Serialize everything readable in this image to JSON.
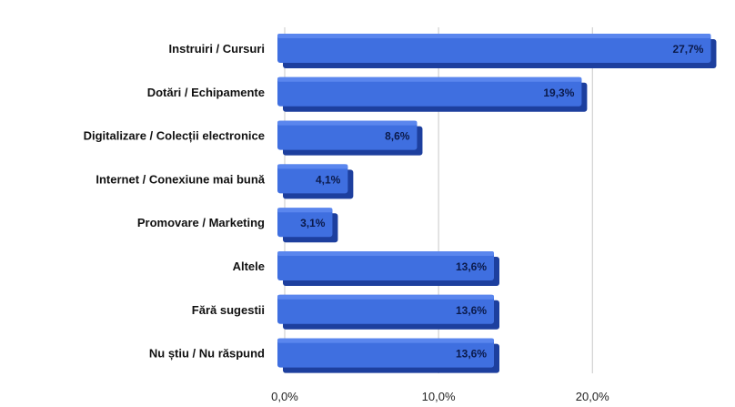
{
  "chart_data": {
    "type": "bar",
    "orientation": "horizontal",
    "categories": [
      "Instruiri / Cursuri",
      "Dotări / Echipamente",
      "Digitalizare / Colecții electronice",
      "Internet / Conexiune mai bună",
      "Promovare / Marketing",
      "Altele",
      "Fără sugestii",
      "Nu știu / Nu răspund"
    ],
    "values": [
      27.7,
      19.3,
      8.6,
      4.1,
      3.1,
      13.6,
      13.6,
      13.6
    ],
    "value_labels": [
      "27,7%",
      "19,3%",
      "8,6%",
      "4,1%",
      "3,1%",
      "13,6%",
      "13,6%",
      "13,6%"
    ],
    "x_ticks": [
      0,
      10,
      20
    ],
    "x_tick_labels": [
      "0,0%",
      "10,0%",
      "20,0%"
    ],
    "xlim": [
      0,
      28.5
    ],
    "title": "",
    "xlabel": "",
    "ylabel": "",
    "grid": "vertical",
    "colors": {
      "bar": "#3f6fe0",
      "bar_top": "#5a86ee",
      "bar_side": "#1d3f9e",
      "grid": "#c8c8c8"
    }
  }
}
